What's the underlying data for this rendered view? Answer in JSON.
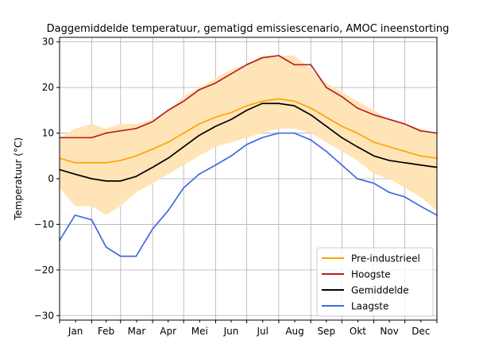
{
  "chart_data": {
    "type": "line",
    "title": "Daggemiddelde temperatuur, gematigd emissiescenario, AMOC ineenstorting",
    "xlabel": "",
    "ylabel": "Temperatuur (°C)",
    "ylim": [
      -31,
      31
    ],
    "xlim": [
      0,
      365
    ],
    "yticks": [
      -30,
      -20,
      -10,
      0,
      10,
      20,
      30
    ],
    "ytick_labels": [
      "−30",
      "−20",
      "−10",
      "0",
      "10",
      "20",
      "30"
    ],
    "month_labels": [
      "Jan",
      "Feb",
      "Mar",
      "Apr",
      "Mei",
      "Jun",
      "Jul",
      "Aug",
      "Sep",
      "Okt",
      "Nov",
      "Dec"
    ],
    "month_starts": [
      0,
      31,
      59,
      90,
      120,
      151,
      181,
      212,
      243,
      273,
      304,
      334,
      365
    ],
    "grid": true,
    "legend_position": "lower-right",
    "x": [
      0,
      15,
      31,
      45,
      59,
      74,
      90,
      105,
      120,
      135,
      151,
      166,
      181,
      196,
      212,
      227,
      243,
      258,
      273,
      288,
      304,
      319,
      334,
      349,
      365
    ],
    "band": {
      "color": "#ffe4b8",
      "upper": [
        9,
        11,
        12,
        11,
        12,
        12,
        13,
        15,
        18,
        20,
        22,
        24,
        25,
        27,
        27,
        27,
        24,
        21,
        19,
        17,
        15,
        13,
        12,
        11,
        10
      ],
      "lower": [
        -2,
        -6,
        -6,
        -8,
        -6,
        -3,
        -1,
        1,
        3,
        5,
        7,
        8,
        9,
        10,
        11,
        11,
        10,
        8,
        6,
        4,
        1,
        0,
        -2,
        -4,
        -7
      ]
    },
    "series": [
      {
        "name": "Pre-industrieel",
        "color": "#ffa500",
        "values": [
          4.5,
          3.5,
          3.5,
          3.5,
          4,
          5,
          6.5,
          8,
          10,
          12,
          13.5,
          14.5,
          16,
          17,
          17.5,
          17,
          15.5,
          13.5,
          11.5,
          10,
          8,
          7,
          6,
          5,
          4.5
        ]
      },
      {
        "name": "Hoogste",
        "color": "#b22222",
        "values": [
          9,
          9,
          9,
          10,
          10.5,
          11,
          12.5,
          15,
          17,
          19.5,
          21,
          23,
          25,
          26.5,
          27,
          25,
          25,
          20,
          18,
          15.5,
          14,
          13,
          12,
          10.5,
          10
        ]
      },
      {
        "name": "Gemiddelde",
        "color": "#000000",
        "values": [
          2,
          1,
          0,
          -0.5,
          -0.5,
          0.5,
          2.5,
          4.5,
          7,
          9.5,
          11.5,
          13,
          15,
          16.5,
          16.5,
          16,
          14,
          11.5,
          9,
          7,
          5,
          4,
          3.5,
          3,
          2.5
        ]
      },
      {
        "name": "Laagste",
        "color": "#4169e1",
        "values": [
          -13.5,
          -8,
          -9,
          -15,
          -17,
          -17,
          -11,
          -7,
          -2,
          1,
          3,
          5,
          7.5,
          9,
          10,
          10,
          8.5,
          6,
          3,
          0,
          -1,
          -3,
          -4,
          -6,
          -8
        ]
      }
    ]
  }
}
